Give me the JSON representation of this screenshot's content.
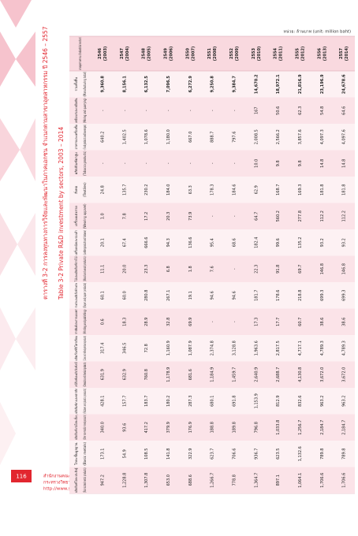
{
  "header": {
    "title_th": "ตารางที่ 3-2  การลงทุนทางการวิจัยและพัฒนาในภาคเอกชน จำแนกตามสาขาอุตสาหกรรม ปี 2546 – 2557",
    "title_en": "Table 3-2   Private R&D investment by sectors, 2003 – 2014",
    "unit": "หน่วย: ล้านบาท (unit: million baht)"
  },
  "table": {
    "corner": "ภาคอุตสาหกรรม (Industrial sector)",
    "columns": [
      {
        "th": "2546",
        "en": "(2003)"
      },
      {
        "th": "2547",
        "en": "(2004)"
      },
      {
        "th": "2548",
        "en": "(2005)"
      },
      {
        "th": "2549",
        "en": "(2006)"
      },
      {
        "th": "2550",
        "en": "(2007)"
      },
      {
        "th": "2551",
        "en": "(2008)"
      },
      {
        "th": "2552",
        "en": "(2009)"
      },
      {
        "th": "2553",
        "en": "(2010)"
      },
      {
        "th": "2554",
        "en": "(2011)"
      },
      {
        "th": "2555",
        "en": "(2012)"
      },
      {
        "th": "2556",
        "en": "(2013)"
      },
      {
        "th": "2557",
        "en": "(2014)"
      }
    ],
    "rows": [
      {
        "label_th": "รวมทั้งสิ้น",
        "label_en": "(Manufacturing total)",
        "values": [
          "9,360.8",
          "8,156.1",
          "6,132.5",
          "7,096.5",
          "6,272.9",
          "9,250.8",
          "9,384.7",
          "14,670.2",
          "18,972.1",
          "21,816.9",
          "23,196.9",
          "24,678.6"
        ]
      },
      {
        "label_th": "เหมืองแร่และเหมืองหิน",
        "label_en": "(Mining and quarrying)",
        "values": [
          "-",
          "-",
          "-",
          "-",
          "-",
          "-",
          "-",
          "167",
          "50.6",
          "62.3",
          "54.8",
          "64.6"
        ]
      },
      {
        "label_th": "อาหารและเครื่องดื่ม",
        "label_en": "(Food products and beverages)",
        "values": [
          "640.2",
          "1,402.5",
          "1,078.6",
          "1,180.0",
          "667.0",
          "888.7",
          "797.6",
          "2,008.5",
          "2,566.2",
          "3,857.6",
          "4,097.3",
          "4,097.6"
        ]
      },
      {
        "label_th": "ผลิตภัณฑ์ยาสูบ",
        "label_en": "(Tobacco products)",
        "values": [
          "-",
          "-",
          "-",
          "-",
          "-",
          "-",
          "-",
          "10.0",
          "9.8",
          "9.8",
          "14.8",
          "14.8"
        ]
      },
      {
        "label_th": "สิ่งทอ",
        "label_en": "(Textiles)",
        "values": [
          "24.8",
          "135.7",
          "230.2",
          "184.0",
          "63.3",
          "178.3",
          "184.6",
          "62.9",
          "168.7",
          "169.3",
          "181.8",
          "181.8"
        ]
      },
      {
        "label_th": "เครื่องแต่งกาย",
        "label_en": "(Wearing apparel)",
        "values": [
          "1.0",
          "7.8",
          "17.2",
          "20.3",
          "73.9",
          "-",
          "-",
          "64.7",
          "560.2",
          "277.8",
          "112.2",
          "112.2"
        ]
      },
      {
        "label_th": "เครื่องหนังและรองเท้า",
        "label_en": "(Leather products and footwear)",
        "values": [
          "20.1",
          "67.4",
          "666.6",
          "94.3",
          "136.6",
          "95.4",
          "68.6",
          "182.4",
          "99.6",
          "135.2",
          "93.2",
          "93.2"
        ]
      },
      {
        "label_th": "ไม้และผลิตภัณฑ์จากไม้",
        "label_en": "(Wood and wood products)",
        "values": [
          "11.1",
          "20.0",
          "23.3",
          "6.8",
          "1.8",
          "7.6",
          "-",
          "22.3",
          "91.8",
          "69.7",
          "146.8",
          "146.8"
        ]
      },
      {
        "label_th": "กระดาษและผลิตภัณฑ์กระดาษ",
        "label_en": "(Paper and paper products)",
        "values": [
          "60.1",
          "60.0",
          "280.8",
          "267.1",
          "19.1",
          "94.6",
          "94.6",
          "181.7",
          "178.6",
          "218.8",
          "699.3",
          "699.3"
        ]
      },
      {
        "label_th": "การพิมพ์และการเผยแพร่",
        "label_en": "(Printing and publishing)",
        "values": [
          "0.6",
          "18.3",
          "28.9",
          "32.8",
          "69.9",
          "-",
          "-",
          "17.3",
          "17.7",
          "60.7",
          "38.6",
          "38.6"
        ]
      },
      {
        "label_th": "ผลิตภัณฑ์ปิโตรเลียม",
        "label_en": "(Coke and refined petroleum products)",
        "values": [
          "317.4",
          "346.5",
          "72.8",
          "1,160.9",
          "1,087.9",
          "2,374.8",
          "3,128.8",
          "1,963.6",
          "2,817.5",
          "4,717.1",
          "4,789.3",
          "4,789.3"
        ]
      },
      {
        "label_th": "เคมีภัณฑ์และผลิตภัณฑ์เคมี",
        "label_en": "(Chemicals and chemical products)",
        "values": [
          "631.9",
          "632.9",
          "760.8",
          "1,178.9",
          "681.6",
          "1,184.9",
          "1,459.7",
          "2,640.9",
          "2,688.7",
          "4,130.8",
          "3,672.0",
          "3,672.0"
        ]
      },
      {
        "label_th": "ผลิตภัณฑ์ยางและพลาสติก",
        "label_en": "(Rubber and plastic products)",
        "values": [
          "428.1",
          "157.7",
          "183.7",
          "180.2",
          "287.3",
          "680.1",
          "691.8",
          "1,153.9",
          "812.9",
          "832.6",
          "963.2",
          "963.2"
        ]
      },
      {
        "label_th": "ผลิตภัณฑ์แร่อโลหะอื่นๆ",
        "label_en": "(Other non-metallic mineral products)",
        "values": [
          "340.0",
          "93.6",
          "417.2",
          "379.9",
          "176.9",
          "188.8",
          "189.8",
          "796.8",
          "1,033.8",
          "1,256.7",
          "2,184.7",
          "2,184.7"
        ]
      },
      {
        "label_th": "โลหะขั้นมูลฐาน",
        "label_en": "(Basic metals)",
        "values": [
          "173.1",
          "54.9",
          "108.5",
          "141.8",
          "322.9",
          "623.7",
          "706.6",
          "936.7",
          "623.5",
          "1,132.6",
          "789.8",
          "789.8"
        ]
      },
      {
        "label_th": "ผลิตภัณฑ์โลหะประดิษฐ์",
        "label_en": "(Fabricated metal products)",
        "values": [
          "947.2",
          "1,228.8",
          "1,307.8",
          "653.0",
          "688.6",
          "1,266.7",
          "778.8",
          "1,364.7",
          "897.1",
          "1,064.1",
          "1,706.6",
          "1,706.6"
        ]
      }
    ]
  },
  "footer": {
    "page": "116",
    "org_th": "สำนักงานคณะกรรมการนโยบายวิทยาศาสตร์ เทคโนโลยีและนวัตกรรมแห่งชาติ",
    "sub_th": "กระทรวงวิทยาศาสตร์และเทคโนโลยี",
    "url": "http://www.sti.or.th"
  }
}
